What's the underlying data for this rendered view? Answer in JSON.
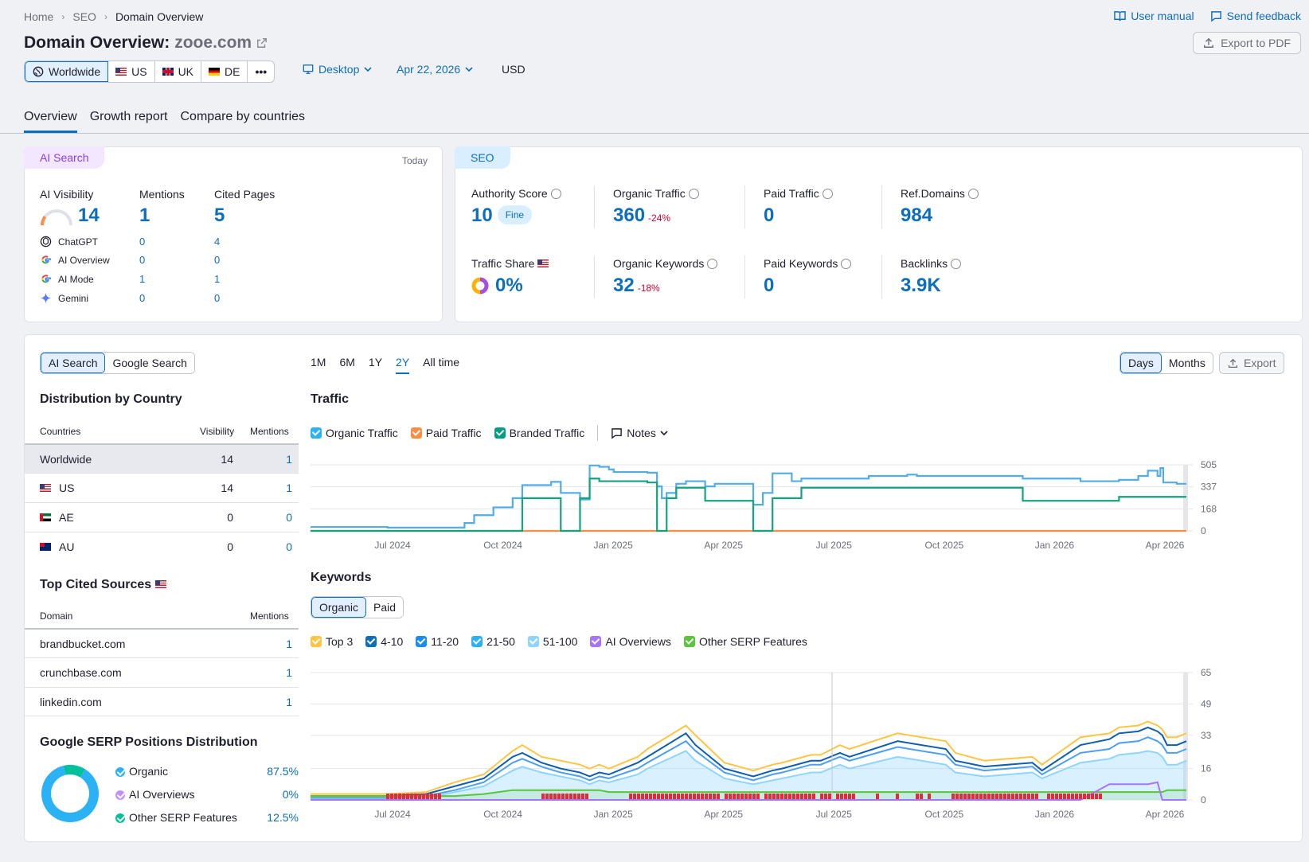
{
  "breadcrumb": {
    "items": [
      "Home",
      "SEO",
      "Domain Overview"
    ]
  },
  "top_links": {
    "manual": "User manual",
    "feedback": "Send feedback"
  },
  "header": {
    "title_prefix": "Domain Overview:",
    "domain": "zooe.com",
    "export_pdf": "Export to PDF"
  },
  "filters": {
    "regions": [
      "Worldwide",
      "US",
      "UK",
      "DE"
    ],
    "more": "•••",
    "device": "Desktop",
    "date": "Apr 22, 2026",
    "currency": "USD"
  },
  "tabs": [
    "Overview",
    "Growth report",
    "Compare by countries"
  ],
  "ai_card": {
    "tag": "AI Search",
    "today": "Today",
    "cols": [
      "AI Visibility",
      "Mentions",
      "Cited Pages"
    ],
    "totals": [
      "14",
      "1",
      "5"
    ],
    "rows": [
      {
        "name": "ChatGPT",
        "icon": "chatgpt-icon",
        "mentions": "0",
        "cited": "4"
      },
      {
        "name": "AI Overview",
        "icon": "google-icon",
        "mentions": "0",
        "cited": "0"
      },
      {
        "name": "AI Mode",
        "icon": "google-icon",
        "mentions": "1",
        "cited": "1"
      },
      {
        "name": "Gemini",
        "icon": "gemini-icon",
        "mentions": "0",
        "cited": "0"
      }
    ]
  },
  "seo_card": {
    "tag": "SEO",
    "authority": {
      "label": "Authority Score",
      "value": "10",
      "badge": "Fine"
    },
    "organic_traffic": {
      "label": "Organic Traffic",
      "value": "360",
      "delta": "-24%"
    },
    "paid_traffic": {
      "label": "Paid Traffic",
      "value": "0"
    },
    "ref_domains": {
      "label": "Ref.Domains",
      "value": "984"
    },
    "traffic_share": {
      "label": "Traffic Share",
      "value": "0%"
    },
    "organic_keywords": {
      "label": "Organic Keywords",
      "value": "32",
      "delta": "-18%"
    },
    "paid_keywords": {
      "label": "Paid Keywords",
      "value": "0"
    },
    "backlinks": {
      "label": "Backlinks",
      "value": "3.9K"
    }
  },
  "bottom": {
    "source_toggle": [
      "AI Search",
      "Google Search"
    ],
    "ranges": [
      "1M",
      "6M",
      "1Y",
      "2Y",
      "All time"
    ],
    "granularity": [
      "Days",
      "Months"
    ],
    "export": "Export",
    "distribution": {
      "title": "Distribution by Country",
      "headers": [
        "Countries",
        "Visibility",
        "Mentions"
      ],
      "rows": [
        {
          "country": "Worldwide",
          "flag": "",
          "visibility": "14",
          "mentions": "1"
        },
        {
          "country": "US",
          "flag": "fl-us",
          "visibility": "14",
          "mentions": "1"
        },
        {
          "country": "AE",
          "flag": "fl-ae",
          "visibility": "0",
          "mentions": "0"
        },
        {
          "country": "AU",
          "flag": "fl-au",
          "visibility": "0",
          "mentions": "0"
        }
      ]
    },
    "cited": {
      "title": "Top Cited Sources",
      "headers": [
        "Domain",
        "Mentions"
      ],
      "rows": [
        {
          "domain": "brandbucket.com",
          "mentions": "1"
        },
        {
          "domain": "crunchbase.com",
          "mentions": "1"
        },
        {
          "domain": "linkedin.com",
          "mentions": "1"
        }
      ]
    },
    "serp": {
      "title": "Google SERP Positions Distribution",
      "items": [
        {
          "label": "Organic",
          "value": "87.5%",
          "color": "#2bb2f5"
        },
        {
          "label": "AI Overviews",
          "value": "0%",
          "color": "#c191ff"
        },
        {
          "label": "Other SERP Features",
          "value": "12.5%",
          "color": "#00c19a"
        }
      ]
    },
    "traffic": {
      "title": "Traffic",
      "legend": [
        {
          "label": "Organic Traffic",
          "color": "#2bb2f5"
        },
        {
          "label": "Paid Traffic",
          "color": "#ff8c43"
        },
        {
          "label": "Branded Traffic",
          "color": "#009f81"
        }
      ],
      "notes": "Notes"
    },
    "keywords": {
      "title": "Keywords",
      "toggle": [
        "Organic",
        "Paid"
      ],
      "legend": [
        {
          "label": "Top 3",
          "color": "#ffc542"
        },
        {
          "label": "4-10",
          "color": "#0d6ebd"
        },
        {
          "label": "11-20",
          "color": "#1a8df2"
        },
        {
          "label": "21-50",
          "color": "#2bb2f5"
        },
        {
          "label": "51-100",
          "color": "#8fd4ff"
        },
        {
          "label": "AI Overviews",
          "color": "#a972ff"
        },
        {
          "label": "Other SERP Features",
          "color": "#59c639"
        }
      ]
    }
  },
  "chart_data": [
    {
      "type": "line",
      "title": "Traffic",
      "x_ticks": [
        "Jul 2024",
        "Oct 2024",
        "Jan 2025",
        "Apr 2025",
        "Jul 2025",
        "Oct 2025",
        "Jan 2026",
        "Apr 2026"
      ],
      "y_ticks": [
        "0",
        "168",
        "337",
        "505"
      ],
      "ylim": [
        0,
        505
      ],
      "x": [
        0,
        8,
        12,
        16,
        17,
        19,
        21,
        22,
        25,
        26,
        28,
        29,
        30,
        31,
        31.5,
        35,
        36,
        36.5,
        37,
        38,
        39,
        40,
        41,
        42,
        46,
        47,
        48,
        50,
        51,
        56,
        58,
        62,
        63,
        68,
        73,
        74,
        80,
        84,
        86,
        87,
        88,
        88.3,
        88.6,
        90,
        91
      ],
      "series": [
        {
          "name": "Organic Traffic",
          "values": [
            30,
            25,
            25,
            60,
            120,
            180,
            250,
            350,
            375,
            290,
            240,
            500,
            490,
            470,
            450,
            445,
            340,
            250,
            290,
            360,
            380,
            380,
            340,
            360,
            200,
            290,
            440,
            380,
            400,
            400,
            420,
            430,
            420,
            420,
            420,
            400,
            380,
            390,
            420,
            460,
            420,
            480,
            370,
            360,
            360
          ]
        },
        {
          "name": "Paid Traffic",
          "values": [
            0,
            0,
            0,
            0,
            0,
            0,
            0,
            0,
            0,
            0,
            0,
            0,
            0,
            0,
            0,
            0,
            0,
            0,
            0,
            0,
            0,
            0,
            0,
            0,
            0,
            0,
            0,
            0,
            0,
            0,
            0,
            0,
            0,
            0,
            0,
            0,
            0,
            0,
            0,
            0,
            0,
            0,
            0,
            0,
            0
          ]
        },
        {
          "name": "Branded Traffic",
          "values": [
            0,
            0,
            0,
            0,
            0,
            0,
            0,
            250,
            250,
            0,
            250,
            400,
            380,
            380,
            380,
            370,
            0,
            0,
            250,
            330,
            330,
            330,
            230,
            230,
            0,
            0,
            250,
            250,
            330,
            330,
            330,
            330,
            330,
            330,
            330,
            230,
            230,
            260,
            260,
            260,
            260,
            260,
            260,
            260,
            260
          ]
        }
      ]
    },
    {
      "type": "area",
      "title": "Keywords",
      "x_ticks": [
        "Jul 2024",
        "Oct 2024",
        "Jan 2025",
        "Apr 2025",
        "Jul 2025",
        "Oct 2025",
        "Jan 2026",
        "Apr 2026"
      ],
      "y_ticks": [
        "0",
        "16",
        "33",
        "49",
        "65"
      ],
      "ylim": [
        0,
        65
      ],
      "x": [
        0,
        8,
        12,
        15,
        18,
        21,
        22,
        24,
        26,
        28,
        29,
        30,
        31,
        34,
        35,
        39,
        40,
        43,
        46,
        48,
        49,
        52,
        53,
        55,
        56,
        61,
        66,
        67,
        70,
        75,
        76,
        80,
        83,
        84,
        86,
        87,
        88,
        88.5,
        89,
        90,
        91
      ],
      "series": [
        {
          "name": "Top 3",
          "values": [
            3,
            3,
            4,
            9,
            13,
            25,
            28,
            22,
            20,
            18,
            16,
            18,
            16,
            22,
            26,
            38,
            33,
            19,
            15,
            18,
            19,
            23,
            23,
            28,
            26,
            34,
            30,
            24,
            20,
            22,
            18,
            32,
            34,
            37,
            38,
            40,
            38,
            36,
            32,
            32,
            34
          ]
        },
        {
          "name": "4-10",
          "values": [
            2,
            2,
            3,
            7,
            11,
            22,
            24,
            19,
            16,
            14,
            12,
            14,
            13,
            19,
            22,
            34,
            28,
            16,
            12,
            15,
            16,
            20,
            20,
            24,
            22,
            30,
            26,
            20,
            17,
            19,
            15,
            28,
            31,
            34,
            35,
            37,
            35,
            33,
            28,
            28,
            30
          ]
        },
        {
          "name": "21-50",
          "values": [
            1,
            1,
            2,
            5,
            9,
            19,
            21,
            17,
            14,
            12,
            10,
            12,
            11,
            16,
            19,
            30,
            25,
            14,
            10,
            13,
            14,
            18,
            18,
            22,
            20,
            27,
            23,
            18,
            15,
            17,
            13,
            24,
            26,
            29,
            30,
            32,
            30,
            28,
            24,
            24,
            26
          ]
        },
        {
          "name": "51-100",
          "values": [
            1,
            1,
            1,
            4,
            7,
            15,
            17,
            14,
            12,
            10,
            8,
            10,
            9,
            13,
            16,
            25,
            20,
            11,
            8,
            10,
            11,
            14,
            14,
            18,
            16,
            22,
            18,
            14,
            12,
            14,
            11,
            19,
            21,
            23,
            24,
            25,
            24,
            22,
            18,
            18,
            20
          ]
        },
        {
          "name": "AI Overviews",
          "values": [
            0,
            0,
            0,
            0,
            0,
            0,
            0,
            0,
            0,
            0,
            0,
            0,
            0,
            0,
            0,
            0,
            0,
            0,
            0,
            0,
            0,
            0,
            0,
            0,
            0,
            0,
            0,
            0,
            0,
            0,
            0,
            0,
            8,
            8,
            8,
            8,
            9,
            0,
            0,
            0,
            0
          ]
        },
        {
          "name": "Other SERP Features",
          "values": [
            2,
            2,
            2,
            2,
            3,
            5,
            5,
            5,
            5,
            5,
            5,
            5,
            4,
            4,
            4,
            4,
            4,
            4,
            4,
            4,
            4,
            4,
            4,
            4,
            4,
            4,
            4,
            4,
            4,
            4,
            4,
            4,
            4,
            4,
            4,
            4,
            4,
            4,
            5,
            5,
            5
          ]
        }
      ]
    },
    {
      "type": "pie",
      "title": "Google SERP Positions Distribution",
      "labels": [
        "Organic",
        "AI Overviews",
        "Other SERP Features"
      ],
      "values": [
        87.5,
        0,
        12.5
      ]
    }
  ]
}
